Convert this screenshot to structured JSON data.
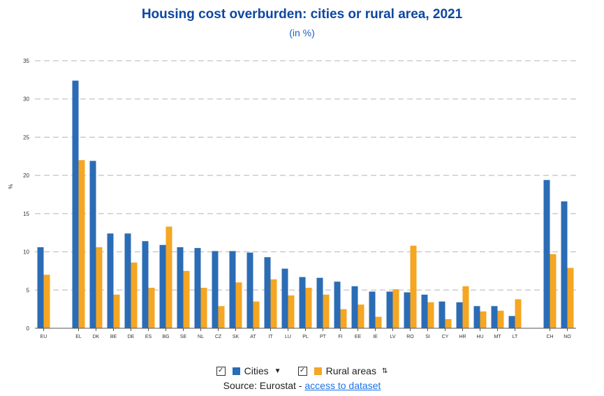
{
  "title": "Housing cost overburden: cities or rural area, 2021",
  "subtitle": "(in %)",
  "legend": {
    "items": [
      {
        "label": "Cities",
        "color": "#2b6cb5",
        "check_icon": "checkbox-checked-icon",
        "sort_icon": "sort-desc-icon",
        "sort_glyph": "▼"
      },
      {
        "label": "Rural areas",
        "color": "#f5a623",
        "check_icon": "checkbox-checked-icon",
        "sort_icon": "sort-both-icon",
        "sort_glyph": "⇅"
      }
    ]
  },
  "source": {
    "prefix": "Source: Eurostat - ",
    "link_text": "access to dataset"
  },
  "chart_data": {
    "type": "bar",
    "ylabel": "%",
    "ylim": [
      0,
      35
    ],
    "yticks": [
      0,
      5,
      10,
      15,
      20,
      25,
      30,
      35
    ],
    "grid": true,
    "categories": [
      "EU",
      "EL",
      "DK",
      "BE",
      "DE",
      "ES",
      "BG",
      "SE",
      "NL",
      "CZ",
      "SK",
      "AT",
      "IT",
      "LU",
      "PL",
      "PT",
      "FI",
      "EE",
      "IE",
      "LV",
      "RO",
      "SI",
      "CY",
      "HR",
      "HU",
      "MT",
      "LT",
      "CH",
      "NO"
    ],
    "groups": [
      [
        0
      ],
      [
        1,
        26
      ],
      [
        27,
        28
      ]
    ],
    "series": [
      {
        "name": "Cities",
        "color": "#2b6cb5",
        "values": [
          10.6,
          32.4,
          21.9,
          12.4,
          12.4,
          11.4,
          10.9,
          10.6,
          10.5,
          10.1,
          10.1,
          9.9,
          9.3,
          7.8,
          6.7,
          6.6,
          6.1,
          5.5,
          4.8,
          4.8,
          4.7,
          4.4,
          3.5,
          3.4,
          2.9,
          2.9,
          1.6,
          19.4,
          16.6
        ]
      },
      {
        "name": "Rural areas",
        "color": "#f5a623",
        "values": [
          7.0,
          22.0,
          10.6,
          4.4,
          8.6,
          5.3,
          13.3,
          7.5,
          5.3,
          2.9,
          6.0,
          3.5,
          6.4,
          4.3,
          5.3,
          4.4,
          2.5,
          3.1,
          1.5,
          5.1,
          10.8,
          3.4,
          1.2,
          5.5,
          2.2,
          2.3,
          3.8,
          9.7,
          7.9
        ]
      }
    ]
  }
}
